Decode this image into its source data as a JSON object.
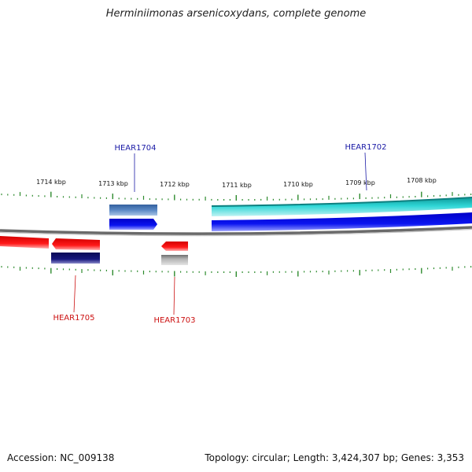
{
  "title": "Herminiimonas arsenicoxydans, complete genome",
  "footer": {
    "accession": "Accession: NC_009138",
    "summary": "Topology: circular; Length: 3,424,307 bp; Genes: 3,353"
  },
  "ruler": {
    "unit": "kbp",
    "labels": [
      "1714 kbp",
      "1713 kbp",
      "1712 kbp",
      "1711 kbp",
      "1710 kbp",
      "1709 kbp",
      "1708 kbp"
    ],
    "tick_color": "#2e8b2e"
  },
  "genes": [
    {
      "label": "HEAR1704",
      "strand": "forward",
      "label_color": "#1a1aa6"
    },
    {
      "label": "HEAR1702",
      "strand": "forward",
      "label_color": "#1a1aa6"
    },
    {
      "label": "HEAR1705",
      "strand": "reverse",
      "label_color": "#cc1111"
    },
    {
      "label": "HEAR1703",
      "strand": "reverse",
      "label_color": "#cc1111"
    }
  ],
  "colors": {
    "forward_cds": "#0a14e6",
    "reverse_cds": "#ee1111",
    "cog_teal": "#20c8c8",
    "cog_steel": "#4a78b8",
    "cog_navy": "#141478",
    "cog_gray": "#a8a8a8",
    "backbone": "#7a7a7a"
  }
}
